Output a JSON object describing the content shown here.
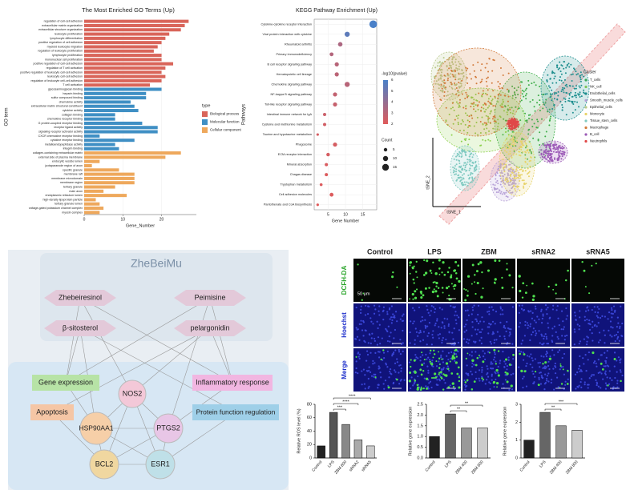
{
  "chart_data": [
    {
      "type": "hbar_grouped",
      "title": "The Most Enriched GO Terms (Up)",
      "ylabel": "GO term",
      "xlabel": "Gene_Number",
      "legend_title": "type",
      "xlim": [
        0,
        29
      ],
      "xticks": [
        0,
        10,
        20
      ],
      "series": [
        {
          "name": "Biological process",
          "color": "#d9655a",
          "categories": [
            "regulation of cell-cell adhesion",
            "extracellular matrix organization",
            "extracellular structure organization",
            "leukocyte proliferation",
            "lymphocyte differentiation",
            "positive regulation of cell adhesion",
            "myeloid leukocyte migration",
            "regulation of leukocyte proliferation",
            "lymphocyte proliferation",
            "mononuclear cell proliferation",
            "positive regulation of cell-cell adhesion",
            "regulation of T cell activation",
            "positive regulation of leukocyte cell-cell adhesion",
            "leukocyte cell-cell adhesion",
            "regulation of leukocyte cell-cell adhesion",
            "T cell activation"
          ],
          "values": [
            27,
            26,
            25,
            22,
            21,
            20,
            19,
            18,
            20,
            20,
            23,
            21,
            20,
            21,
            20,
            17
          ]
        },
        {
          "name": "Molecular function",
          "color": "#3f8fc4",
          "categories": [
            "glycosaminoglycan binding",
            "heparin binding",
            "sulfur compound binding",
            "chemokine activity",
            "extracellular matrix structural constituent",
            "cytokine activity",
            "collagen binding",
            "chemokine receptor binding",
            "G protein-coupled receptor binding",
            "receptor ligand activity",
            "signaling receptor activator activity",
            "CXCR chemokine receptor binding",
            "cytokine receptor binding",
            "metalloendopeptidase activity",
            "integrin binding"
          ],
          "values": [
            20,
            16,
            16,
            12,
            13,
            14,
            8,
            8,
            15,
            19,
            19,
            4,
            13,
            8,
            9
          ]
        },
        {
          "name": "Cellular component",
          "color": "#eea85c",
          "categories": [
            "collagen-containing extracellular matrix",
            "external side of plasma membrane",
            "endocytic vesicle lumen",
            "juxtaparanode region of axon",
            "specific granule",
            "membrane raft",
            "membrane microdomain",
            "membrane region",
            "tertiary granule",
            "main axon",
            "endoplasmic reticulum lumen",
            "high-density lipoprotein particle",
            "tertiary granule lumen",
            "voltage-gated potassium channel complex",
            "myosin complex"
          ],
          "values": [
            25,
            21,
            4,
            2,
            9,
            13,
            13,
            13,
            8,
            5,
            11,
            3,
            4,
            5,
            4
          ]
        }
      ]
    },
    {
      "type": "dotplot",
      "title": "KEGG Pathway Enrichment (Up)",
      "xlabel": "Gene Number",
      "ylabel": "Pathways",
      "categories": [
        "Cytokine-cytokine receptor interaction",
        "Viral protein interaction with cytokine",
        "Rheumatoid arthritis",
        "Primary immunodeficiency",
        "B cell receptor signaling pathway",
        "Hematopoietic cell lineage",
        "Chemokine signaling pathway",
        "NF-kappa B signaling pathway",
        "Toll-like receptor signaling pathway",
        "Intestinal immune network for IgA",
        "Cysteine and methionine metabolism",
        "Taurine and hypotaurine metabolism",
        "Phagosome",
        "ECM-receptor interaction",
        "Mineral absorption",
        "Chagas disease",
        "Tryptophan metabolism",
        "Cell adhesion molecules",
        "Pantothenate and CoA biosynthesis"
      ],
      "values": [
        18,
        10.5,
        8.5,
        6,
        7.5,
        7.5,
        10.5,
        7,
        7,
        4,
        4,
        2,
        7,
        5,
        4.5,
        4.5,
        3,
        6,
        2
      ],
      "color_values": [
        6.2,
        5.5,
        3.4,
        3.2,
        3.1,
        3,
        3.1,
        2.8,
        2.7,
        2.6,
        2.4,
        2.3,
        2.3,
        2.3,
        2.2,
        2.1,
        2.1,
        2.1,
        2
      ],
      "size_values": [
        18,
        10,
        8,
        6,
        7,
        7,
        10,
        7,
        7,
        4,
        4,
        2,
        7,
        5,
        4,
        4,
        3,
        6,
        2
      ],
      "color_legend_title": "-log10(pvalue)",
      "color_ticks": [
        2,
        3,
        4,
        5,
        6
      ],
      "color_scale": [
        "#e05a5a",
        "#4a80c8"
      ],
      "size_legend_title": "Count",
      "size_ticks": [
        5,
        10,
        15
      ],
      "xlim": [
        1,
        19
      ],
      "xticks": [
        5,
        10,
        15
      ]
    },
    {
      "type": "cluster_map",
      "xlabel": "tSNE_1",
      "ylabel": "tSNE_2",
      "legend_title": "Cluster",
      "clusters": [
        {
          "name": "T_cells",
          "color": "#3fae49"
        },
        {
          "name": "NK_cell",
          "color": "#8fd14f"
        },
        {
          "name": "Endothelial_cells",
          "color": "#1f8f8f"
        },
        {
          "name": "Smooth_muscle_cells",
          "color": "#b59fd6"
        },
        {
          "name": "Epithelial_cells",
          "color": "#b8c98a"
        },
        {
          "name": "Monocyte",
          "color": "#e8d36a"
        },
        {
          "name": "Tissue_stem_cells",
          "color": "#7fc9c0"
        },
        {
          "name": "Macrophage",
          "color": "#d27a3a"
        },
        {
          "name": "B_cell",
          "color": "#9b59b6"
        },
        {
          "name": "Neutrophils",
          "color": "#e04848"
        }
      ]
    },
    {
      "type": "bar",
      "ylabel": "Relative ROS level (%)",
      "categories": [
        "Control",
        "LPS",
        "ZBM 800",
        "sRNA2",
        "sRNA5"
      ],
      "values": [
        18,
        68,
        50,
        27,
        18
      ],
      "colors": [
        "#222222",
        "#555555",
        "#888888",
        "#aaaaaa",
        "#cccccc"
      ],
      "ylim": [
        0,
        80
      ],
      "yticks": [
        0,
        20,
        40,
        60,
        80
      ],
      "significance": [
        "***",
        "****",
        "****"
      ]
    },
    {
      "type": "bar",
      "ylabel": "Relative gene expression",
      "categories": [
        "Control",
        "LPS",
        "ZBM 400",
        "ZBM 800"
      ],
      "values": [
        1.0,
        2.05,
        1.4,
        1.4
      ],
      "colors": [
        "#222222",
        "#666666",
        "#999999",
        "#cccccc"
      ],
      "ylim": [
        0,
        2.5
      ],
      "yticks": [
        {
          "value": 0,
          "label": "0.0"
        },
        0.5,
        {
          "value": 1,
          "label": "1.0"
        },
        1.5,
        {
          "value": 2,
          "label": "2.0"
        },
        2.5
      ],
      "significance": [
        "**",
        "**"
      ]
    },
    {
      "type": "bar",
      "ylabel": "Relative gene expression",
      "categories": [
        "Control",
        "LPS",
        "ZBM 400",
        "ZBM 800"
      ],
      "values": [
        1.0,
        2.55,
        1.8,
        1.55
      ],
      "colors": [
        "#222222",
        "#666666",
        "#999999",
        "#cccccc"
      ],
      "ylim": [
        0,
        3
      ],
      "yticks": [
        0,
        1,
        2,
        3
      ],
      "significance": [
        "**",
        "***"
      ]
    }
  ],
  "network": {
    "title": "ZheBeiMu",
    "compounds": [
      "Zhebeiresinol",
      "Peimisine",
      "β-sitosterol",
      "pelargonidin"
    ],
    "processes": [
      "Gene expression",
      "Inflammatory response",
      "Apoptosis",
      "Protein function regulation"
    ],
    "genes": [
      "NOS2",
      "HSP90AA1",
      "PTGS2",
      "BCL2",
      "ESR1"
    ]
  },
  "microscopy": {
    "columns": [
      "Control",
      "LPS",
      "ZBM",
      "sRNA2",
      "sRNA5"
    ],
    "rows": [
      "DCFH-DA",
      "Hoechst",
      "Merge"
    ],
    "scale": "50 μm"
  }
}
